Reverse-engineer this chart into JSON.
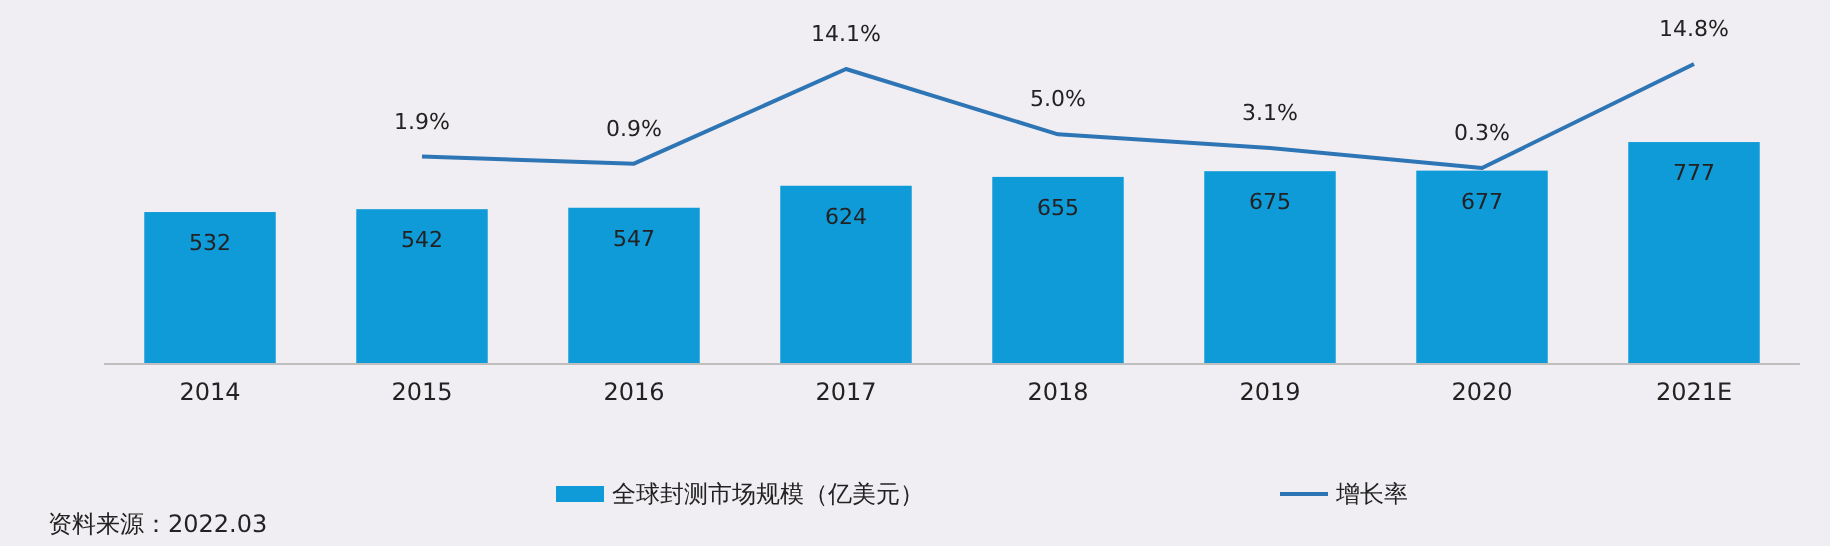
{
  "chart_data": {
    "type": "bar",
    "categories": [
      "2014",
      "2015",
      "2016",
      "2017",
      "2018",
      "2019",
      "2020",
      "2021E"
    ],
    "series": [
      {
        "name": "全球封测市场规模（亿美元）",
        "color": "#0f9ad8",
        "values": [
          532,
          542,
          547,
          624,
          655,
          675,
          677,
          777
        ]
      },
      {
        "name": "增长率",
        "type": "line",
        "axis": "y2",
        "color": "#2e75b6",
        "values": [
          null,
          1.9,
          0.9,
          14.1,
          5.0,
          3.1,
          0.3,
          14.8
        ],
        "value_labels": [
          null,
          "1.9%",
          "0.9%",
          "14.1%",
          "5.0%",
          "3.1%",
          "0.3%",
          "14.8%"
        ]
      }
    ],
    "data_labels": true,
    "legend": "bottom",
    "tick_labels": "x",
    "annotations": [
      "资料来源：2022.03"
    ]
  }
}
